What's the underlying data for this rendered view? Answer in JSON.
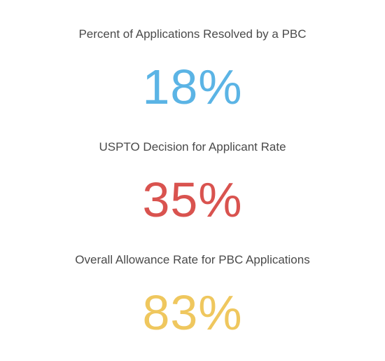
{
  "stats": [
    {
      "label": "Percent of Applications Resolved by a PBC",
      "value": "18%",
      "color": "#5bb4e5"
    },
    {
      "label": "USPTO Decision for Applicant Rate",
      "value": "35%",
      "color": "#d9534f"
    },
    {
      "label": "Overall Allowance Rate for PBC Applications",
      "value": "83%",
      "color": "#efc75e"
    }
  ]
}
